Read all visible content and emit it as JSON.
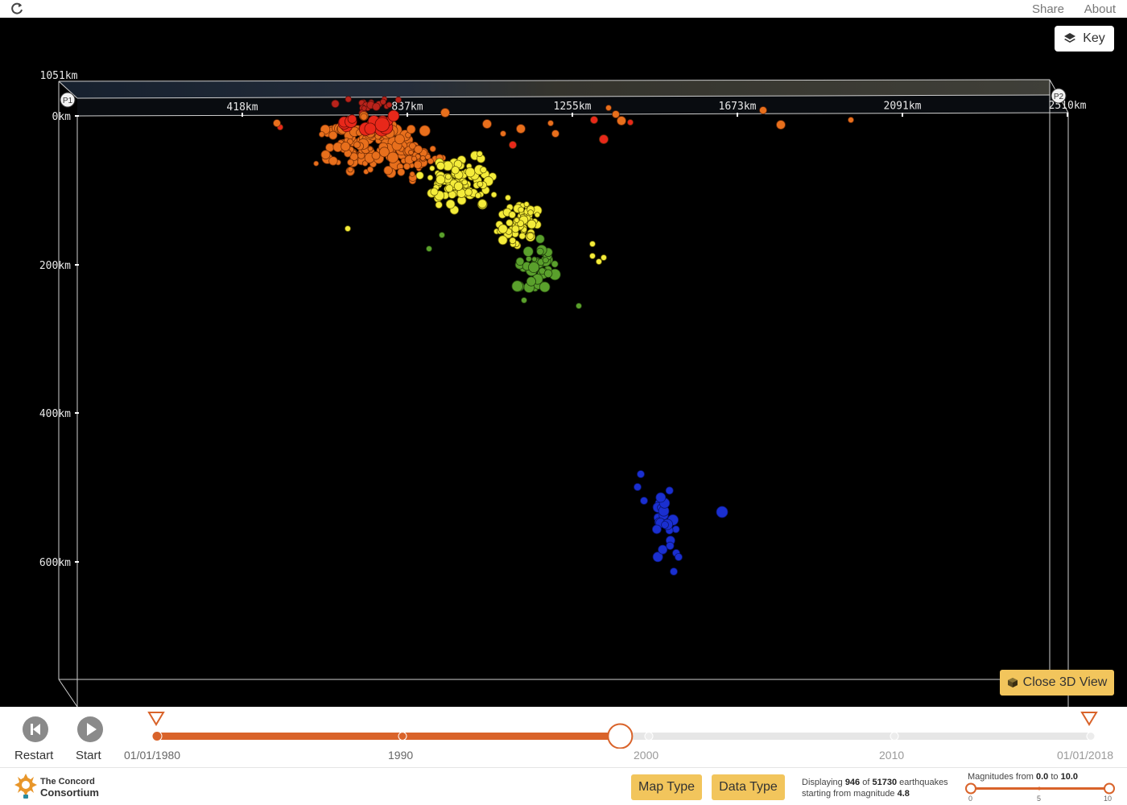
{
  "topbar": {
    "share_label": "Share",
    "about_label": "About"
  },
  "key_button": {
    "label": "Key"
  },
  "close3d_button": {
    "label": "Close 3D View"
  },
  "axes": {
    "top_depth_label": "1051km",
    "point_labels": [
      "P1",
      "P2"
    ],
    "distance_ticks": [
      "418km",
      "837km",
      "1255km",
      "1673km",
      "2091km",
      "2510km"
    ],
    "depth_ticks": [
      "0km",
      "200km",
      "400km",
      "600km"
    ]
  },
  "colors": {
    "red": "#e8281a",
    "orange": "#e86f1c",
    "yellow": "#f4ec3a",
    "green": "#5aa02c",
    "blue": "#1a2fd0",
    "accent": "#d9632a",
    "button_yellow": "#f2c55c"
  },
  "controls": {
    "restart_label": "Restart",
    "start_label": "Start",
    "timeline": {
      "start_date": "01/01/1980",
      "end_date": "01/01/2018",
      "year_ticks": [
        "1990",
        "2000",
        "2010"
      ],
      "progress": 0.4
    }
  },
  "footer": {
    "logo_line1": "The Concord",
    "logo_line2": "Consortium",
    "map_type_label": "Map Type",
    "data_type_label": "Data Type",
    "stats": {
      "prefix": "Displaying",
      "displayed": "946",
      "of": "of",
      "total": "51730",
      "suffix": "earthquakes",
      "line2_prefix": "starting from magnitude",
      "min_magnitude": "4.8"
    },
    "magnitude": {
      "prefix": "Magnitudes from",
      "from": "0.0",
      "to_word": "to",
      "to": "10.0",
      "ticks": [
        "0",
        "5",
        "10"
      ]
    }
  }
}
